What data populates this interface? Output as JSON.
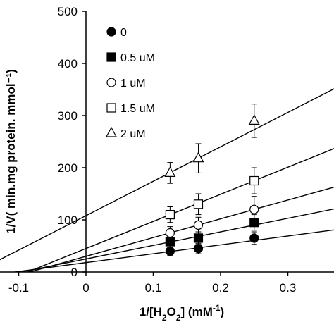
{
  "chart_data": {
    "type": "scatter",
    "title": "",
    "xlabel_parts": [
      "1/[H",
      "2",
      "O",
      "2",
      "] (mM",
      "-1",
      ")"
    ],
    "ylabel": "1/V( min.mg protein. mmol⁻¹)",
    "xlim": [
      -0.2,
      0.38
    ],
    "ylim": [
      0,
      500
    ],
    "xticks": [
      -0.1,
      0,
      0.1,
      0.2,
      0.3
    ],
    "xtick_labels": [
      "-0.1",
      "0",
      "0.1",
      "0.2",
      "0.3"
    ],
    "yticks": [
      0,
      100,
      200,
      300,
      400,
      500
    ],
    "ytick_labels": [
      "0",
      "100",
      "200",
      "300",
      "400",
      "500"
    ],
    "grid": false,
    "legend_position": "top-left",
    "series": [
      {
        "name": "0",
        "marker": "filled-circle",
        "points": [
          {
            "x": 0.125,
            "y": 40,
            "err": 8
          },
          {
            "x": 0.167,
            "y": 45,
            "err": 10
          },
          {
            "x": 0.25,
            "y": 65,
            "err": 12
          }
        ],
        "fit": {
          "slope": 170,
          "intercept": 18
        }
      },
      {
        "name": "0.5 uM",
        "marker": "filled-square",
        "points": [
          {
            "x": 0.125,
            "y": 58,
            "err": 10
          },
          {
            "x": 0.167,
            "y": 65,
            "err": 12
          },
          {
            "x": 0.25,
            "y": 95,
            "err": 15
          }
        ],
        "fit": {
          "slope": 260,
          "intercept": 25
        }
      },
      {
        "name": "1 uM",
        "marker": "open-circle",
        "points": [
          {
            "x": 0.125,
            "y": 75,
            "err": 12
          },
          {
            "x": 0.167,
            "y": 90,
            "err": 15
          },
          {
            "x": 0.25,
            "y": 120,
            "err": 25
          }
        ],
        "fit": {
          "slope": 360,
          "intercept": 30
        }
      },
      {
        "name": "1.5 uM",
        "marker": "open-square",
        "points": [
          {
            "x": 0.125,
            "y": 110,
            "err": 15
          },
          {
            "x": 0.167,
            "y": 130,
            "err": 20
          },
          {
            "x": 0.25,
            "y": 175,
            "err": 25
          }
        ],
        "fit": {
          "slope": 520,
          "intercept": 45
        }
      },
      {
        "name": "2 uM",
        "marker": "open-triangle",
        "points": [
          {
            "x": 0.125,
            "y": 190,
            "err": 20
          },
          {
            "x": 0.167,
            "y": 218,
            "err": 28
          },
          {
            "x": 0.25,
            "y": 290,
            "err": 32
          }
        ],
        "fit": {
          "slope": 660,
          "intercept": 108
        }
      }
    ]
  }
}
